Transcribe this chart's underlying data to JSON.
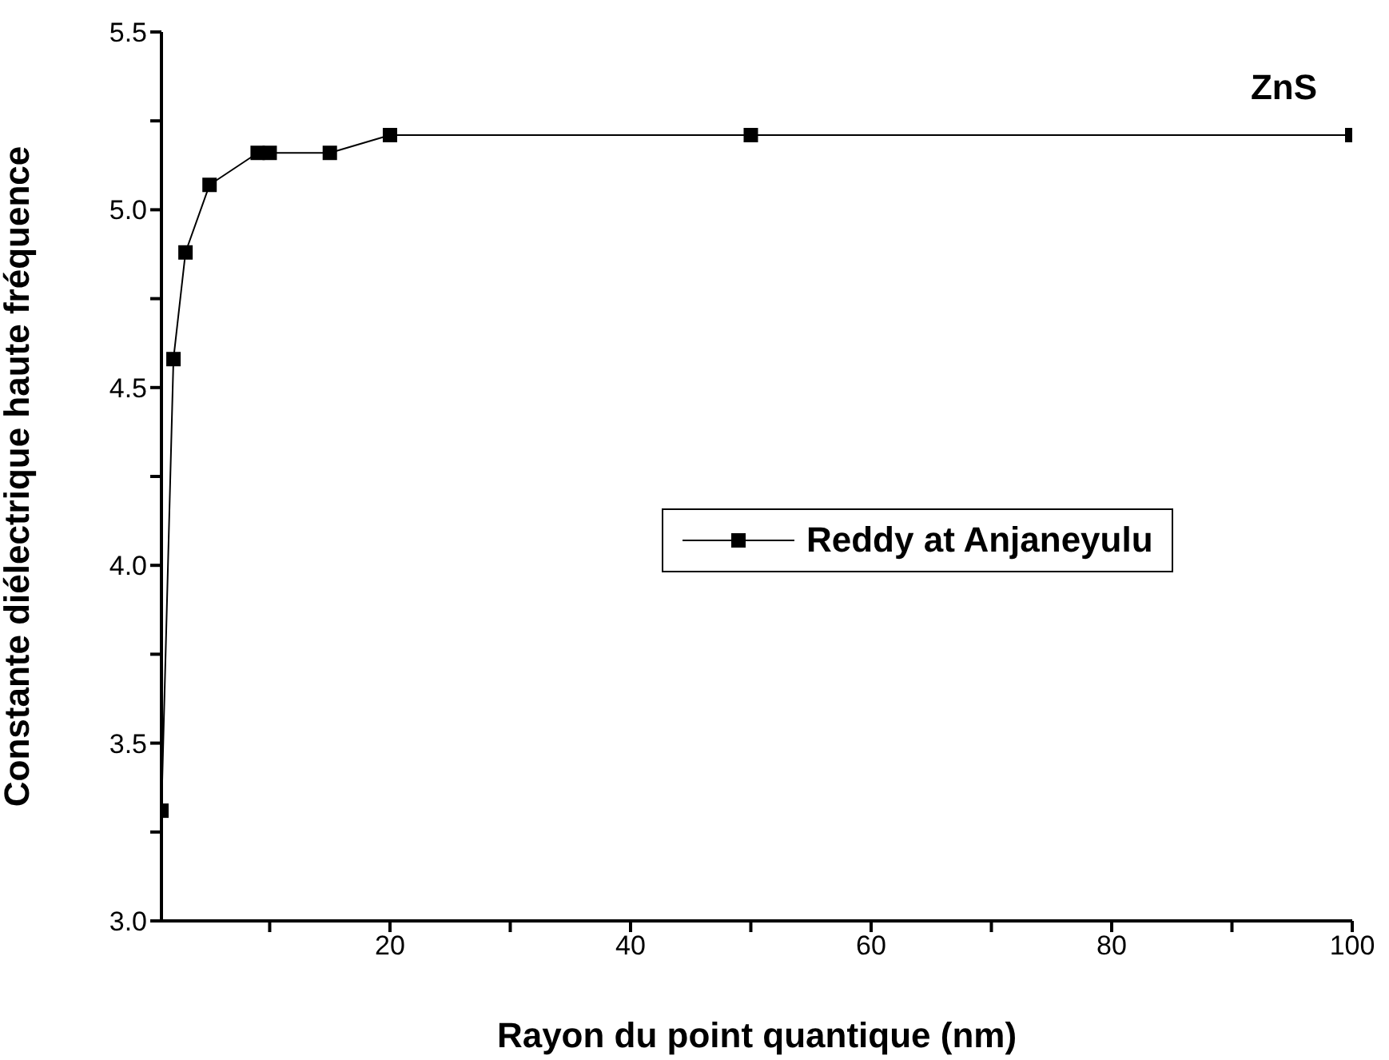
{
  "chart_data": {
    "type": "line",
    "xlabel": "Rayon du point quantique (nm)",
    "ylabel": "Constante diélectrique haute fréquence",
    "annotations": [
      "ZnS"
    ],
    "x": [
      1,
      2,
      3,
      5,
      9,
      10,
      15,
      20,
      50,
      100
    ],
    "series": [
      {
        "name": "Reddy at Anjaneyulu",
        "color": "#000000",
        "values": [
          3.31,
          4.58,
          4.88,
          5.07,
          5.16,
          5.16,
          5.16,
          5.21,
          5.21,
          5.21
        ]
      }
    ],
    "xlim": [
      1,
      100
    ],
    "xticks": [
      {
        "value": 10,
        "label": null
      },
      20,
      {
        "value": 30,
        "label": null
      },
      40,
      {
        "value": 50,
        "label": null
      },
      60,
      {
        "value": 70,
        "label": null
      },
      80,
      {
        "value": 90,
        "label": null
      },
      100
    ],
    "ylim": [
      3.0,
      5.5
    ],
    "yticks": [
      {
        "value": 3.0,
        "label": "3.0"
      },
      {
        "value": 3.25,
        "label": null
      },
      {
        "value": 3.5,
        "label": "3.5"
      },
      {
        "value": 3.75,
        "label": null
      },
      {
        "value": 4.0,
        "label": "4.0"
      },
      {
        "value": 4.25,
        "label": null
      },
      {
        "value": 4.5,
        "label": "4.5"
      },
      {
        "value": 4.75,
        "label": null
      },
      {
        "value": 5.0,
        "label": "5.0"
      },
      {
        "value": 5.25,
        "label": null
      },
      {
        "value": 5.5,
        "label": "5.5"
      }
    ],
    "grid": false,
    "legend": "center",
    "marker": "square",
    "line_style": "solid"
  }
}
